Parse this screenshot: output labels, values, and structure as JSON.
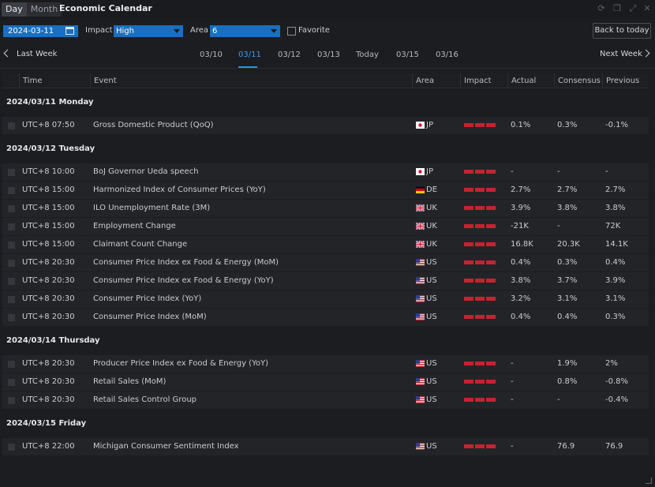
{
  "titlebar": {
    "toggle": [
      {
        "label": "Day",
        "active": true
      },
      {
        "label": "Month",
        "active": false
      }
    ],
    "title": "Economic Calendar",
    "controls": [
      "refresh-icon",
      "restore-icon",
      "expand-icon",
      "close-icon"
    ]
  },
  "filters": {
    "date": "2024-03-11",
    "impact_label": "Impact",
    "impact_value": "High",
    "area_label": "Area",
    "area_value": "6",
    "favorite_label": "Favorite",
    "back_today": "Back to today"
  },
  "weeknav": {
    "last_week": "Last Week",
    "next_week": "Next Week",
    "days": [
      "03/10",
      "03/11",
      "03/12",
      "03/13",
      "Today",
      "03/15",
      "03/16"
    ],
    "active_index": 1
  },
  "table": {
    "headers": [
      "Time",
      "Event",
      "Area",
      "Impact",
      "Actual",
      "Consensus",
      "Previous"
    ],
    "groups": [
      {
        "date": "2024/03/11 Monday",
        "rows": [
          {
            "time": "UTC+8 07:50",
            "event": "Gross Domestic Product (QoQ)",
            "area": "JP",
            "actual": "0.1%",
            "consensus": "0.3%",
            "previous": "-0.1%"
          }
        ]
      },
      {
        "date": "2024/03/12 Tuesday",
        "rows": [
          {
            "time": "UTC+8 10:00",
            "event": "BoJ Governor Ueda speech",
            "area": "JP",
            "actual": "-",
            "consensus": "-",
            "previous": "-"
          },
          {
            "time": "UTC+8 15:00",
            "event": "Harmonized Index of Consumer Prices (YoY)",
            "area": "DE",
            "actual": "2.7%",
            "consensus": "2.7%",
            "previous": "2.7%"
          },
          {
            "time": "UTC+8 15:00",
            "event": "ILO Unemployment Rate (3M)",
            "area": "UK",
            "actual": "3.9%",
            "consensus": "3.8%",
            "previous": "3.8%"
          },
          {
            "time": "UTC+8 15:00",
            "event": "Employment Change",
            "area": "UK",
            "actual": "-21K",
            "consensus": "-",
            "previous": "72K"
          },
          {
            "time": "UTC+8 15:00",
            "event": "Claimant Count Change",
            "area": "UK",
            "actual": "16.8K",
            "consensus": "20.3K",
            "previous": "14.1K"
          },
          {
            "time": "UTC+8 20:30",
            "event": "Consumer Price Index ex Food & Energy (MoM)",
            "area": "US",
            "actual": "0.4%",
            "consensus": "0.3%",
            "previous": "0.4%"
          },
          {
            "time": "UTC+8 20:30",
            "event": "Consumer Price Index ex Food & Energy (YoY)",
            "area": "US",
            "actual": "3.8%",
            "consensus": "3.7%",
            "previous": "3.9%"
          },
          {
            "time": "UTC+8 20:30",
            "event": "Consumer Price Index (YoY)",
            "area": "US",
            "actual": "3.2%",
            "consensus": "3.1%",
            "previous": "3.1%"
          },
          {
            "time": "UTC+8 20:30",
            "event": "Consumer Price Index (MoM)",
            "area": "US",
            "actual": "0.4%",
            "consensus": "0.4%",
            "previous": "0.3%"
          }
        ]
      },
      {
        "date": "2024/03/14 Thursday",
        "rows": [
          {
            "time": "UTC+8 20:30",
            "event": "Producer Price Index ex Food & Energy (YoY)",
            "area": "US",
            "actual": "-",
            "consensus": "1.9%",
            "previous": "2%"
          },
          {
            "time": "UTC+8 20:30",
            "event": "Retail Sales (MoM)",
            "area": "US",
            "actual": "-",
            "consensus": "0.8%",
            "previous": "-0.8%"
          },
          {
            "time": "UTC+8 20:30",
            "event": "Retail Sales Control Group",
            "area": "US",
            "actual": "-",
            "consensus": "-",
            "previous": "-0.4%"
          }
        ]
      },
      {
        "date": "2024/03/15 Friday",
        "rows": [
          {
            "time": "UTC+8 22:00",
            "event": "Michigan Consumer Sentiment Index",
            "area": "US",
            "actual": "-",
            "consensus": "76.9",
            "previous": "76.9"
          }
        ]
      }
    ]
  },
  "colors": {
    "accent": "#1b6fc0",
    "active_tab": "#3a9bf0",
    "impact_high": "#c8222f"
  }
}
